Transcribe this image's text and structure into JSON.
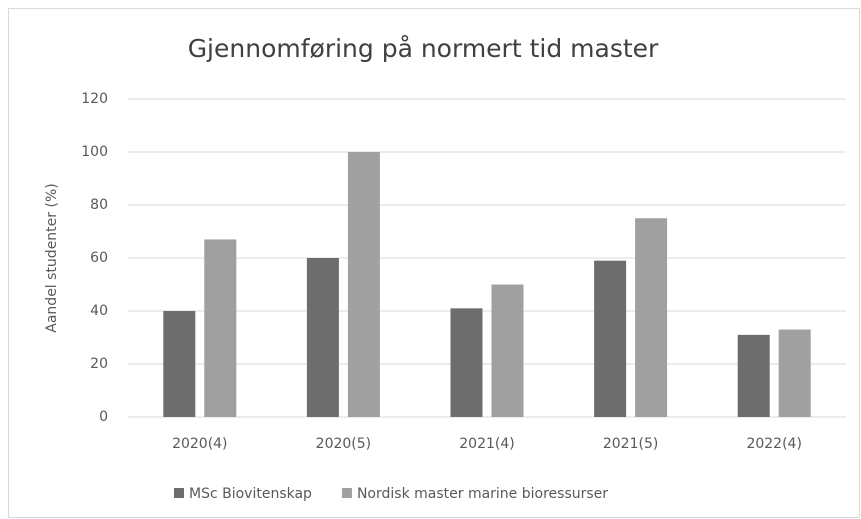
{
  "chart_data": {
    "type": "bar",
    "title": "Gjennomføring på normert tid master",
    "y_label": "Aandel studenter (%)",
    "categories": [
      "2020(4)",
      "2020(5)",
      "2021(4)",
      "2021(5)",
      "2022(4)"
    ],
    "series": [
      {
        "name": "MSc Biovitenskap",
        "color": "#6d6d6d",
        "values": [
          40,
          60,
          41,
          59,
          31
        ]
      },
      {
        "name": "Nordisk master marine bioressurser",
        "color": "#a0a0a0",
        "values": [
          67,
          100,
          50,
          75,
          33
        ]
      }
    ],
    "ylim": [
      0,
      120
    ],
    "yticks": [
      0,
      20,
      40,
      60,
      80,
      100,
      120
    ],
    "grid": true,
    "legend": "bottom"
  }
}
